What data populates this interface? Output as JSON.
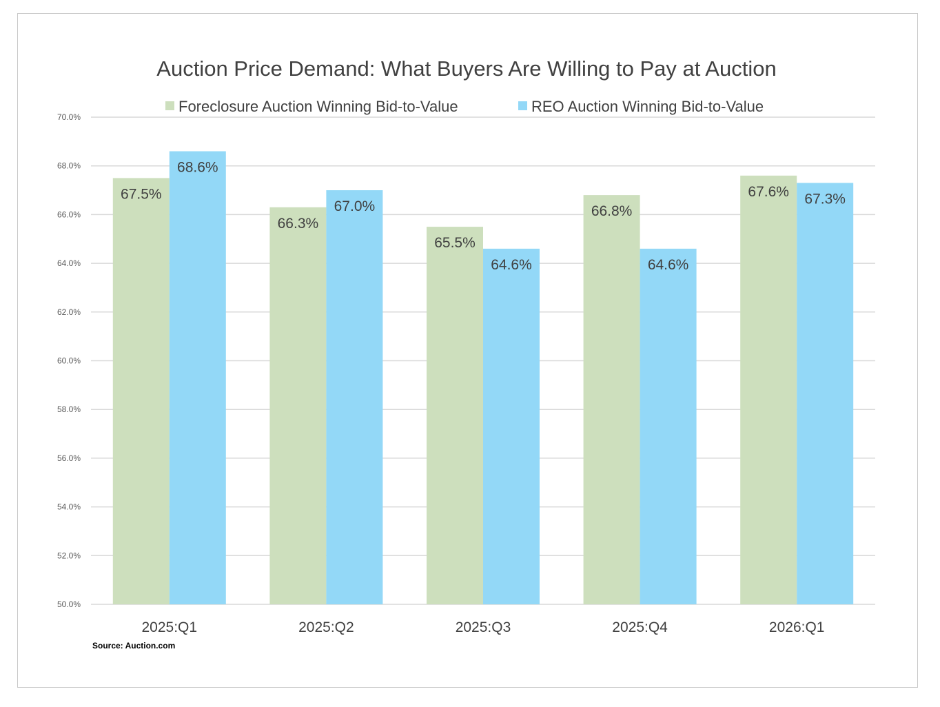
{
  "chart_data": {
    "type": "bar",
    "title": "Auction Price Demand: What  Buyers Are Willing to Pay at Auction",
    "categories": [
      "2025:Q1",
      "2025:Q2",
      "2025:Q3",
      "2025:Q4",
      "2026:Q1"
    ],
    "series": [
      {
        "name": "Foreclosure Auction Winning Bid-to-Value",
        "color": "#cddfbd",
        "values": [
          67.5,
          66.3,
          65.5,
          66.8,
          67.6
        ],
        "labels": [
          "67.5%",
          "66.3%",
          "65.5%",
          "66.8%",
          "67.6%"
        ]
      },
      {
        "name": "REO Auction Winning Bid-to-Value",
        "color": "#93d8f7",
        "values": [
          68.6,
          67.0,
          64.6,
          64.6,
          67.3
        ],
        "labels": [
          "68.6%",
          "67.0%",
          "64.6%",
          "64.6%",
          "67.3%"
        ]
      }
    ],
    "ylim": [
      50,
      70
    ],
    "yticks": [
      "50.0%",
      "52.0%",
      "54.0%",
      "56.0%",
      "58.0%",
      "60.0%",
      "62.0%",
      "64.0%",
      "66.0%",
      "68.0%",
      "70.0%"
    ],
    "grid": true,
    "legend": "top",
    "source": "Source: Auction.com"
  }
}
